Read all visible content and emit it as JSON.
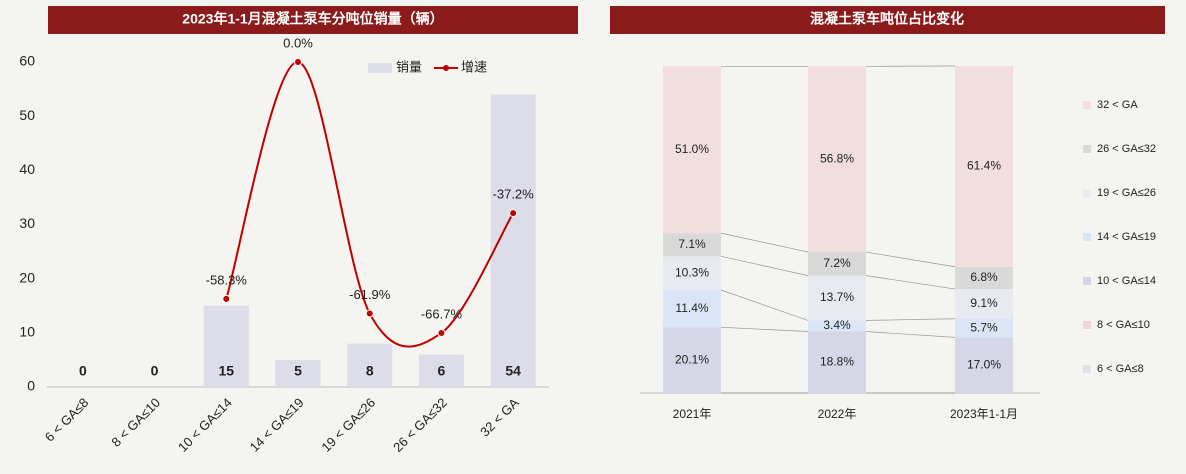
{
  "chart_data": [
    {
      "type": "bar",
      "title": "2023年1-1月混凝土泵车分吨位销量（辆）",
      "categories": [
        "6 < GA≤8",
        "8 < GA≤10",
        "10 < GA≤14",
        "14 < GA≤19",
        "19 < GA≤26",
        "26 < GA≤32",
        "32 < GA"
      ],
      "series": [
        {
          "name": "销量",
          "color": "#dcdde8",
          "values": [
            0,
            0,
            15,
            5,
            8,
            6,
            54
          ]
        },
        {
          "name": "增速",
          "color": "#c00000",
          "type": "line",
          "axis": "y2",
          "values": [
            null,
            null,
            -58.3,
            0.0,
            -61.9,
            -66.7,
            -37.2
          ],
          "value_labels": [
            null,
            null,
            "-58.3%",
            "0.0%",
            "-61.9%",
            "-66.7%",
            "-37.2%"
          ]
        }
      ],
      "ylim": [
        0,
        60
      ],
      "yticks": [
        0,
        10,
        20,
        30,
        40,
        50,
        60
      ],
      "y2lim": [
        -80,
        0
      ]
    },
    {
      "type": "stacked",
      "title": "混凝土泵车吨位占比变化",
      "categories": [
        "2021年",
        "2022年",
        "2023年1-1月"
      ],
      "series": [
        {
          "name": "6 < GA≤8",
          "color": "#dfe0ea",
          "values": [
            0,
            0,
            0
          ]
        },
        {
          "name": "8 < GA≤10",
          "color": "#efd5d5",
          "values": [
            0,
            0,
            0
          ]
        },
        {
          "name": "10 < GA≤14",
          "color": "#d5d7e6",
          "values": [
            20.1,
            18.8,
            17.0
          ],
          "value_labels": [
            "20.1%",
            "18.8%",
            "17.0%"
          ]
        },
        {
          "name": "14 < GA≤19",
          "color": "#dae6f7",
          "values": [
            11.4,
            3.4,
            5.7
          ],
          "value_labels": [
            "11.4%",
            "3.4%",
            "5.7%"
          ]
        },
        {
          "name": "19 < GA≤26",
          "color": "#e8eaf2",
          "values": [
            10.3,
            13.7,
            9.1
          ],
          "value_labels": [
            "10.3%",
            "13.7%",
            "9.1%"
          ]
        },
        {
          "name": "26 < GA≤32",
          "color": "#d9d9d9",
          "values": [
            7.1,
            7.2,
            6.8
          ],
          "value_labels": [
            "7.1%",
            "7.2%",
            "6.8%"
          ]
        },
        {
          "name": "32 < GA",
          "color": "#f2dede",
          "values": [
            51.0,
            56.8,
            61.4
          ],
          "value_labels": [
            "51.0%",
            "56.8%",
            "61.4%"
          ]
        }
      ],
      "ylim": [
        0,
        100
      ]
    }
  ]
}
